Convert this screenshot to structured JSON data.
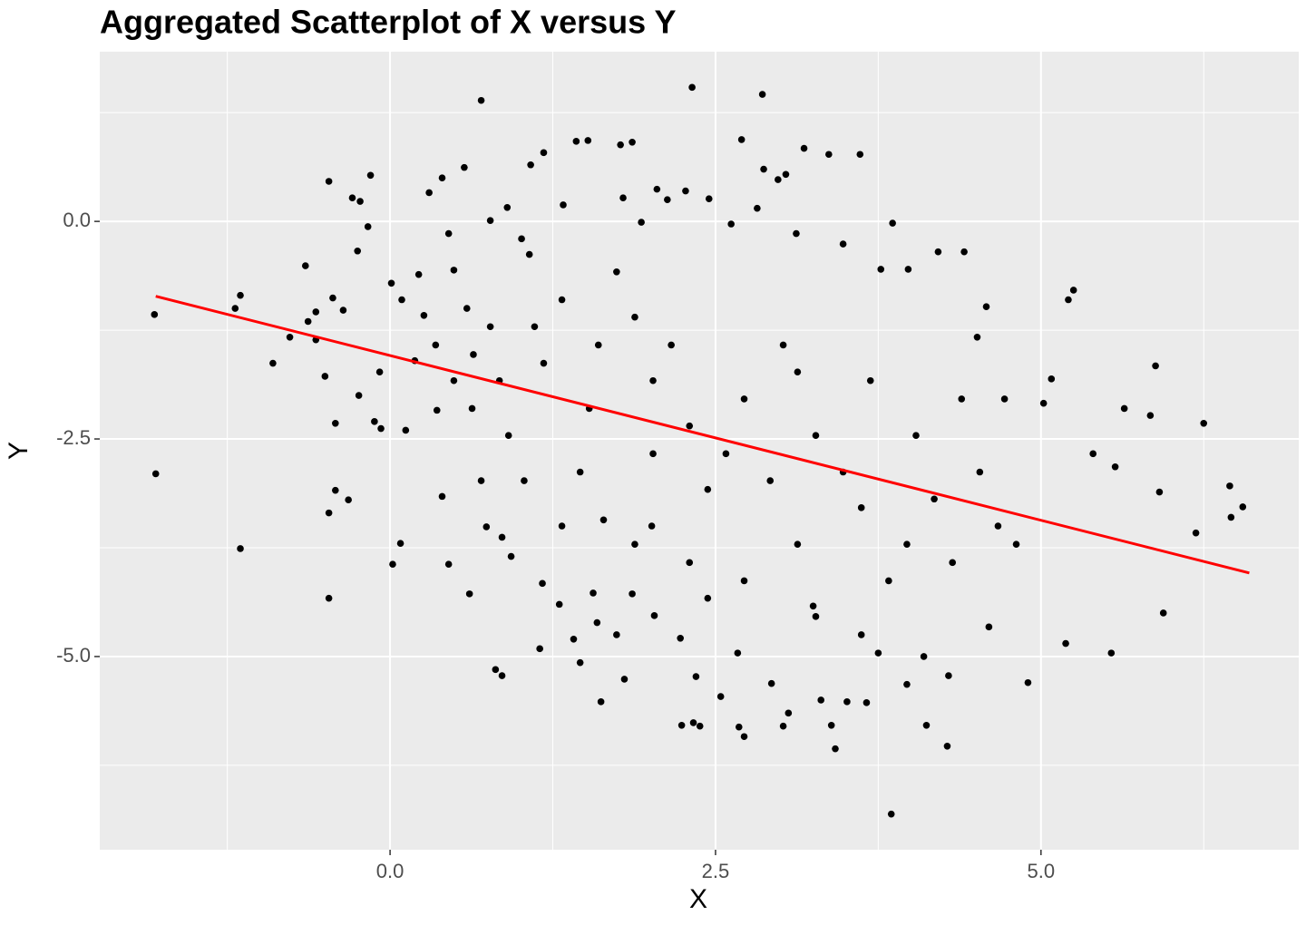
{
  "chart_data": {
    "type": "scatter",
    "title": "Aggregated Scatterplot of X versus Y",
    "x_label": "X",
    "y_label": "Y",
    "xlim": [
      -2.23,
      6.98
    ],
    "ylim": [
      -7.22,
      1.95
    ],
    "xticks": [
      {
        "value": 0,
        "label": "0.0"
      },
      2.5,
      {
        "value": 5,
        "label": "5.0"
      }
    ],
    "yticks": [
      {
        "value": -5,
        "label": "-5.0"
      },
      -2.5,
      {
        "value": 0,
        "label": "0.0"
      }
    ],
    "x_minor_grid": [
      -1.25,
      1.25,
      3.75,
      6.25
    ],
    "y_minor_grid": [
      -6.25,
      -3.75,
      -1.25,
      1.25
    ],
    "grid": true,
    "color": "#000000",
    "trend": {
      "x": [
        -1.8,
        6.6
      ],
      "y": [
        -0.86,
        -4.04
      ],
      "color": "#ff0000"
    },
    "x": [
      -1.81,
      -1.8,
      -1.19,
      -1.15,
      -1.15,
      -0.9,
      -0.77,
      -0.65,
      -0.63,
      -0.57,
      -0.57,
      -0.5,
      -0.47,
      -0.47,
      -0.47,
      -0.44,
      -0.42,
      -0.42,
      -0.36,
      -0.32,
      -0.29,
      -0.25,
      -0.23,
      -0.24,
      -0.17,
      -0.15,
      -0.12,
      -0.08,
      -0.07,
      0.01,
      0.02,
      0.08,
      0.09,
      0.12,
      0.19,
      0.22,
      0.26,
      0.3,
      0.36,
      0.4,
      0.4,
      0.45,
      0.45,
      0.49,
      0.57,
      0.59,
      0.61,
      0.64,
      0.7,
      0.7,
      0.74,
      0.77,
      0.81,
      0.86,
      0.86,
      0.9,
      0.93,
      1.01,
      1.03,
      1.07,
      1.08,
      1.15,
      1.17,
      1.18,
      1.3,
      1.33,
      1.41,
      1.43,
      1.46,
      1.52,
      1.56,
      1.59,
      1.62,
      1.64,
      1.77,
      1.79,
      1.8,
      1.86,
      1.86,
      1.93,
      2.01,
      2.03,
      2.05,
      2.13,
      2.23,
      2.24,
      2.27,
      2.32,
      2.33,
      2.35,
      2.38,
      2.45,
      2.54,
      2.62,
      2.67,
      2.68,
      2.7,
      2.72,
      2.82,
      2.86,
      2.87,
      2.93,
      2.98,
      3.02,
      3.04,
      3.06,
      3.12,
      3.18,
      3.25,
      3.31,
      3.37,
      3.39,
      3.42,
      3.48,
      3.51,
      3.61,
      3.66,
      3.75,
      3.77,
      3.85,
      3.86,
      3.97,
      3.98,
      4.1,
      4.12,
      4.21,
      4.28,
      4.29,
      4.41,
      4.51,
      4.58,
      4.6,
      4.72,
      4.9,
      5.02,
      5.08,
      5.19,
      5.21,
      5.25,
      5.4,
      5.54,
      5.57,
      5.64,
      5.84,
      5.88,
      5.91,
      5.94,
      6.19,
      6.25,
      6.45,
      6.46,
      6.55,
      1.18,
      1.53,
      1.88,
      2.02,
      2.3,
      2.58,
      2.92,
      3.27,
      3.62,
      3.97,
      4.32,
      4.67,
      0.84,
      0.63,
      1.32,
      1.74,
      2.16,
      2.44,
      2.72,
      3.13,
      3.48,
      3.83,
      4.18,
      4.53,
      4.81,
      1.46,
      1.88,
      2.3,
      2.72,
      3.13,
      1.11,
      0.91,
      0.35,
      1.6,
      2.02,
      3.02,
      3.69,
      4.04,
      4.39,
      3.27,
      3.62,
      2.44,
      1.74,
      0.77,
      0.49,
      1.32
    ],
    "values": [
      -1.07,
      -2.9,
      -1.0,
      -0.85,
      -3.76,
      -1.63,
      -1.33,
      -0.51,
      -1.15,
      -1.04,
      -1.36,
      -1.78,
      0.46,
      -3.35,
      -4.33,
      -0.88,
      -3.09,
      -2.32,
      -1.02,
      -3.2,
      0.27,
      -0.34,
      0.23,
      -2.0,
      -0.06,
      0.53,
      -2.3,
      -1.73,
      -2.38,
      -0.71,
      -3.94,
      -3.7,
      -0.9,
      -2.4,
      -1.6,
      -0.61,
      -1.08,
      0.33,
      -2.17,
      0.5,
      -3.16,
      -0.14,
      -3.94,
      -0.56,
      0.62,
      -1.0,
      -4.28,
      -1.53,
      1.39,
      -2.98,
      -3.51,
      0.01,
      -5.15,
      -5.22,
      -3.63,
      0.16,
      -3.85,
      -0.2,
      -2.98,
      -0.38,
      0.65,
      -4.91,
      -4.16,
      0.79,
      -4.4,
      0.19,
      -4.8,
      0.92,
      -5.07,
      0.93,
      -4.27,
      -4.61,
      -5.52,
      -3.43,
      0.88,
      0.27,
      -5.26,
      0.91,
      -4.28,
      -0.01,
      -3.5,
      -4.53,
      0.37,
      0.25,
      -4.79,
      -5.79,
      0.35,
      1.54,
      -5.76,
      -5.23,
      -5.8,
      0.26,
      -5.46,
      -0.03,
      -4.96,
      -5.81,
      0.94,
      -5.92,
      0.15,
      1.46,
      0.6,
      -5.31,
      0.48,
      -5.8,
      0.54,
      -5.65,
      -0.14,
      0.84,
      -4.42,
      -5.5,
      0.77,
      -5.79,
      -6.06,
      -0.26,
      -5.52,
      0.77,
      -5.53,
      -4.96,
      -0.55,
      -6.81,
      -0.02,
      -5.32,
      -0.55,
      -5.0,
      -5.79,
      -0.35,
      -6.03,
      -5.22,
      -0.35,
      -1.33,
      -0.98,
      -4.66,
      -2.04,
      -5.3,
      -2.09,
      -1.81,
      -4.85,
      -0.9,
      -0.79,
      -2.67,
      -4.96,
      -2.82,
      -2.15,
      -2.23,
      -1.66,
      -3.11,
      -4.5,
      -3.58,
      -2.32,
      -3.04,
      -3.4,
      -3.28,
      -1.63,
      -2.15,
      -1.1,
      -1.83,
      -2.35,
      -2.67,
      -2.98,
      -2.46,
      -3.29,
      -3.71,
      -3.92,
      -3.5,
      -1.83,
      -2.15,
      -0.9,
      -0.58,
      -1.42,
      -3.08,
      -2.04,
      -1.73,
      -2.88,
      -4.13,
      -3.19,
      -2.88,
      -3.71,
      -2.88,
      -3.71,
      -3.92,
      -4.13,
      -3.71,
      -1.21,
      -2.46,
      -1.42,
      -1.42,
      -2.67,
      -1.42,
      -1.83,
      -2.46,
      -2.04,
      -4.54,
      -4.75,
      -4.33,
      -4.75,
      -1.21,
      -1.83,
      -3.5
    ]
  }
}
